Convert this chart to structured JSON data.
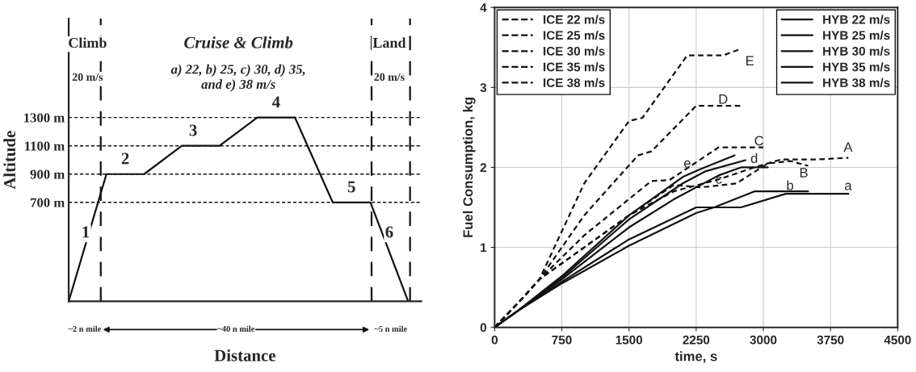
{
  "chart_data": [
    {
      "type": "line",
      "xlabel": "Distance",
      "ylabel": "Altitude",
      "categories": [
        null,
        null,
        null,
        null,
        null,
        null,
        null,
        null,
        null,
        null
      ],
      "series": [
        {
          "color": "#111111",
          "values": [
            0,
            900,
            900,
            1100,
            1100,
            1300,
            1300,
            700,
            700,
            0
          ]
        }
      ],
      "ylim": [
        0,
        2000
      ],
      "yticks": [
        {
          "value": 700,
          "label": "700 m"
        },
        {
          "value": 900,
          "label": "900 m"
        },
        {
          "value": 1100,
          "label": "1100 m"
        },
        {
          "value": 1300,
          "label": "1300 m"
        }
      ],
      "tick_labels": "y",
      "grid": false,
      "line_style": "solid",
      "ref_lines": [
        {
          "axis": "y",
          "value": 700,
          "line_style": "dashed",
          "color": "#111111"
        },
        {
          "axis": "y",
          "value": 900,
          "line_style": "dashed",
          "color": "#111111"
        },
        {
          "axis": "y",
          "value": 1100,
          "line_style": "dashed",
          "color": "#111111"
        },
        {
          "axis": "y",
          "value": 1300,
          "line_style": "dashed",
          "color": "#111111"
        }
      ],
      "annotations": [
        "Climb",
        "Cruise & Climb",
        "Land",
        "20 m/s",
        "a) 22, b) 25, c) 30, d) 35,\nand e) 38 m/s",
        "20 m/s",
        "1",
        "2",
        "3",
        "4",
        "5",
        "6",
        "~2 n mile",
        "~40 n mile",
        "~5 n mile"
      ]
    },
    {
      "type": "line",
      "xlabel": "time, s",
      "ylabel": "Fuel Consumption, kg",
      "xlim": [
        0,
        4500
      ],
      "xticks": [
        0,
        750,
        1500,
        2250,
        3000,
        3750,
        4500
      ],
      "ylim": [
        0,
        4
      ],
      "yticks": [
        0,
        1,
        2,
        3,
        4
      ],
      "grid": true,
      "legend": "top",
      "series": [
        {
          "name": "ICE 22 m/s",
          "color": "#111111",
          "line_style": "dashed",
          "x": [
            0,
            300,
            500,
            1000,
            1500,
            2000,
            2500,
            2900,
            3200,
            3600,
            3950
          ],
          "values": [
            0,
            0.35,
            0.6,
            1.0,
            1.4,
            1.7,
            1.85,
            2.0,
            2.1,
            2.1,
            2.12
          ]
        },
        {
          "name": "ICE 25 m/s",
          "color": "#111111",
          "line_style": "dashed",
          "x": [
            0,
            300,
            500,
            1000,
            1500,
            2000,
            2300,
            2700,
            3050,
            3300,
            3500
          ],
          "values": [
            0,
            0.35,
            0.6,
            1.0,
            1.4,
            1.78,
            1.75,
            1.8,
            2.05,
            2.08,
            2.02
          ]
        },
        {
          "name": "ICE 30 m/s",
          "color": "#111111",
          "line_style": "dashed",
          "x": [
            0,
            300,
            500,
            1000,
            1750,
            1950,
            2500,
            3000
          ],
          "values": [
            0,
            0.35,
            0.6,
            1.15,
            1.83,
            1.84,
            2.25,
            2.25
          ]
        },
        {
          "name": "ICE 35 m/s",
          "color": "#111111",
          "line_style": "dashed",
          "x": [
            0,
            300,
            500,
            1000,
            1600,
            1750,
            2250,
            2750
          ],
          "values": [
            0,
            0.35,
            0.6,
            1.4,
            2.15,
            2.2,
            2.77,
            2.77
          ]
        },
        {
          "name": "ICE 38 m/s",
          "color": "#111111",
          "line_style": "dashed",
          "x": [
            0,
            300,
            500,
            1000,
            1500,
            1650,
            2150,
            2550,
            2720
          ],
          "values": [
            0,
            0.35,
            0.6,
            1.8,
            2.58,
            2.62,
            3.4,
            3.4,
            3.47
          ]
        },
        {
          "name": "HYB 22 m/s",
          "color": "#111111",
          "line_style": "solid",
          "x": [
            0,
            250,
            750,
            1500,
            2250,
            2450,
            2750,
            3250,
            3950
          ],
          "values": [
            0,
            0.2,
            0.55,
            1.02,
            1.43,
            1.5,
            1.5,
            1.67,
            1.67
          ]
        },
        {
          "name": "HYB 25 m/s",
          "color": "#111111",
          "line_style": "solid",
          "x": [
            0,
            250,
            750,
            1500,
            2250,
            2450,
            2900,
            3500
          ],
          "values": [
            0,
            0.2,
            0.57,
            1.1,
            1.5,
            1.5,
            1.7,
            1.7
          ]
        },
        {
          "name": "HYB 30 m/s",
          "color": "#111111",
          "line_style": "solid",
          "x": [
            0,
            250,
            750,
            1500,
            2000,
            2500,
            2750,
            3050
          ],
          "values": [
            0,
            0.2,
            0.6,
            1.25,
            1.6,
            1.9,
            2.0,
            2.0
          ]
        },
        {
          "name": "HYB 35 m/s",
          "color": "#111111",
          "line_style": "solid",
          "x": [
            0,
            250,
            750,
            1500,
            2100,
            2350,
            2800
          ],
          "values": [
            0,
            0.2,
            0.62,
            1.35,
            1.8,
            1.95,
            2.09
          ]
        },
        {
          "name": "HYB 38 m/s",
          "color": "#111111",
          "line_style": "solid",
          "x": [
            0,
            250,
            750,
            1500,
            2100,
            2300,
            2680
          ],
          "values": [
            0,
            0.2,
            0.64,
            1.4,
            1.88,
            1.98,
            2.15
          ]
        }
      ],
      "annotations": [
        "A",
        "B",
        "C",
        "D",
        "E",
        "a",
        "b",
        "c",
        "d",
        "e"
      ]
    }
  ]
}
